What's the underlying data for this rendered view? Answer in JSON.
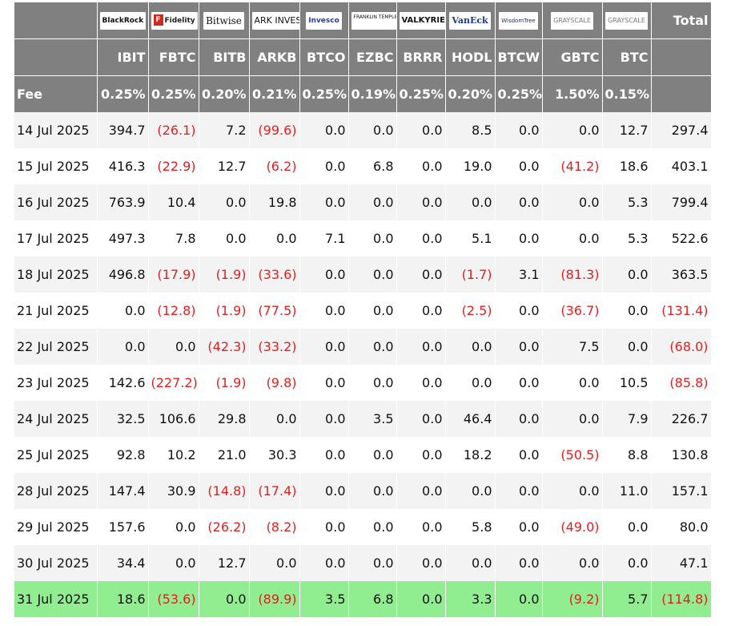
{
  "colors": {
    "header_bg": "#808080",
    "header_text": "#ffffff",
    "stripe_bg": "#f3f3f3",
    "highlight_bg": "#90ee90",
    "negative_text": "#e02020"
  },
  "issuers": [
    {
      "logo": "BlackRock",
      "ticker": "IBIT",
      "fee": "0.25%"
    },
    {
      "logo": "Fidelity",
      "ticker": "FBTC",
      "fee": "0.25%"
    },
    {
      "logo": "Bitwise",
      "ticker": "BITB",
      "fee": "0.20%"
    },
    {
      "logo": "ARK INVEST",
      "ticker": "ARKB",
      "fee": "0.21%"
    },
    {
      "logo": "Invesco",
      "ticker": "BTCO",
      "fee": "0.25%"
    },
    {
      "logo": "FRANKLIN TEMPLETON",
      "ticker": "EZBC",
      "fee": "0.19%"
    },
    {
      "logo": "VALKYRIE",
      "ticker": "BRRR",
      "fee": "0.25%"
    },
    {
      "logo": "VanEck",
      "ticker": "HODL",
      "fee": "0.20%"
    },
    {
      "logo": "WisdomTree",
      "ticker": "BTCW",
      "fee": "0.25%"
    },
    {
      "logo": "GRAYSCALE",
      "ticker": "GBTC",
      "fee": "1.50%"
    },
    {
      "logo": "GRAYSCALE",
      "ticker": "BTC",
      "fee": "0.15%"
    }
  ],
  "header": {
    "total_label": "Total",
    "fee_label": "Fee"
  },
  "rows": [
    {
      "date": "14 Jul 2025",
      "values": [
        "394.7",
        "(26.1)",
        "7.2",
        "(99.6)",
        "0.0",
        "0.0",
        "0.0",
        "8.5",
        "0.0",
        "0.0",
        "12.7"
      ],
      "total": "297.4"
    },
    {
      "date": "15 Jul 2025",
      "values": [
        "416.3",
        "(22.9)",
        "12.7",
        "(6.2)",
        "0.0",
        "6.8",
        "0.0",
        "19.0",
        "0.0",
        "(41.2)",
        "18.6"
      ],
      "total": "403.1"
    },
    {
      "date": "16 Jul 2025",
      "values": [
        "763.9",
        "10.4",
        "0.0",
        "19.8",
        "0.0",
        "0.0",
        "0.0",
        "0.0",
        "0.0",
        "0.0",
        "5.3"
      ],
      "total": "799.4"
    },
    {
      "date": "17 Jul 2025",
      "values": [
        "497.3",
        "7.8",
        "0.0",
        "0.0",
        "7.1",
        "0.0",
        "0.0",
        "5.1",
        "0.0",
        "0.0",
        "5.3"
      ],
      "total": "522.6"
    },
    {
      "date": "18 Jul 2025",
      "values": [
        "496.8",
        "(17.9)",
        "(1.9)",
        "(33.6)",
        "0.0",
        "0.0",
        "0.0",
        "(1.7)",
        "3.1",
        "(81.3)",
        "0.0"
      ],
      "total": "363.5"
    },
    {
      "date": "21 Jul 2025",
      "values": [
        "0.0",
        "(12.8)",
        "(1.9)",
        "(77.5)",
        "0.0",
        "0.0",
        "0.0",
        "(2.5)",
        "0.0",
        "(36.7)",
        "0.0"
      ],
      "total": "(131.4)"
    },
    {
      "date": "22 Jul 2025",
      "values": [
        "0.0",
        "0.0",
        "(42.3)",
        "(33.2)",
        "0.0",
        "0.0",
        "0.0",
        "0.0",
        "0.0",
        "7.5",
        "0.0"
      ],
      "total": "(68.0)"
    },
    {
      "date": "23 Jul 2025",
      "values": [
        "142.6",
        "(227.2)",
        "(1.9)",
        "(9.8)",
        "0.0",
        "0.0",
        "0.0",
        "0.0",
        "0.0",
        "0.0",
        "10.5"
      ],
      "total": "(85.8)"
    },
    {
      "date": "24 Jul 2025",
      "values": [
        "32.5",
        "106.6",
        "29.8",
        "0.0",
        "0.0",
        "3.5",
        "0.0",
        "46.4",
        "0.0",
        "0.0",
        "7.9"
      ],
      "total": "226.7"
    },
    {
      "date": "25 Jul 2025",
      "values": [
        "92.8",
        "10.2",
        "21.0",
        "30.3",
        "0.0",
        "0.0",
        "0.0",
        "18.2",
        "0.0",
        "(50.5)",
        "8.8"
      ],
      "total": "130.8"
    },
    {
      "date": "28 Jul 2025",
      "values": [
        "147.4",
        "30.9",
        "(14.8)",
        "(17.4)",
        "0.0",
        "0.0",
        "0.0",
        "0.0",
        "0.0",
        "0.0",
        "11.0"
      ],
      "total": "157.1"
    },
    {
      "date": "29 Jul 2025",
      "values": [
        "157.6",
        "0.0",
        "(26.2)",
        "(8.2)",
        "0.0",
        "0.0",
        "0.0",
        "5.8",
        "0.0",
        "(49.0)",
        "0.0"
      ],
      "total": "80.0"
    },
    {
      "date": "30 Jul 2025",
      "values": [
        "34.4",
        "0.0",
        "12.7",
        "0.0",
        "0.0",
        "0.0",
        "0.0",
        "0.0",
        "0.0",
        "0.0",
        "0.0"
      ],
      "total": "47.1"
    },
    {
      "date": "31 Jul 2025",
      "values": [
        "18.6",
        "(53.6)",
        "0.0",
        "(89.9)",
        "3.5",
        "6.8",
        "0.0",
        "3.3",
        "0.0",
        "(9.2)",
        "5.7"
      ],
      "total": "(114.8)",
      "highlighted": true
    }
  ]
}
